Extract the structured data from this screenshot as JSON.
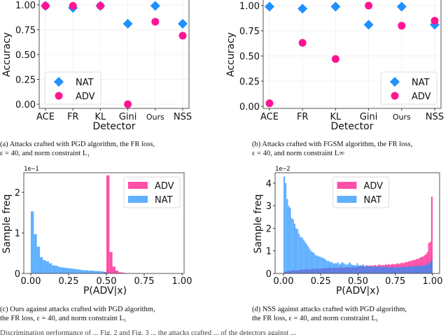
{
  "colors": {
    "nat": "#1e90ff",
    "adv": "#ff1493",
    "nat_hist": "#5fb0ff",
    "adv_hist": "#ff4fa7",
    "overlap_hist": "#5b7fe6"
  },
  "captions": {
    "a": [
      "(a) Attacks crafted with PGD algorithm, the FR loss,",
      "ε = 40, and norm constraint L₁"
    ],
    "b": [
      "(b) Attacks crafted with FGSM algorithm, the FR loss,",
      "ε = 40, and norm constraint L∞"
    ],
    "c": [
      "(c) Ours against attacks crafted with PGD algorithm,",
      "the FR loss, ε = 40, and norm constraint L₁"
    ],
    "d": [
      "(d) NSS against attacks crafted with PGD algorithm,",
      "the FR loss, ε = 40, and norm constraint L₁"
    ]
  },
  "footer_text": "Discrimination performance of ... Fig. 2 and Fig. 3 ... the attacks crafted ... of the detectors against ...",
  "chart_data": [
    {
      "id": "a",
      "type": "scatter",
      "title": "",
      "xlabel": "Detector",
      "ylabel": "Accuracy",
      "categories": [
        "ACE",
        "FR",
        "KL",
        "Gini",
        "Ours",
        "NSS"
      ],
      "yticks": [
        "0.00",
        "0.25",
        "0.50",
        "0.75",
        "1.00"
      ],
      "ylim": [
        0,
        1
      ],
      "grid": true,
      "legend": {
        "position": "lower-left",
        "entries": [
          "NAT",
          "ADV"
        ]
      },
      "series": [
        {
          "name": "NAT",
          "marker": "diamond",
          "values": [
            0.99,
            0.97,
            0.99,
            0.81,
            0.99,
            0.81
          ]
        },
        {
          "name": "ADV",
          "marker": "circle",
          "values": [
            0.99,
            0.99,
            0.99,
            0.0,
            0.83,
            0.69
          ]
        }
      ]
    },
    {
      "id": "b",
      "type": "scatter",
      "title": "",
      "xlabel": "Detector",
      "ylabel": "Accuracy",
      "categories": [
        "ACE",
        "FR",
        "KL",
        "Gini",
        "Ours",
        "NSS"
      ],
      "yticks": [
        "0.00",
        "0.25",
        "0.50",
        "0.75",
        "1.00"
      ],
      "ylim": [
        0,
        1
      ],
      "grid": true,
      "legend": {
        "position": "lower-right",
        "entries": [
          "NAT",
          "ADV"
        ]
      },
      "series": [
        {
          "name": "NAT",
          "marker": "diamond",
          "values": [
            0.99,
            0.97,
            0.99,
            0.81,
            0.99,
            0.81
          ]
        },
        {
          "name": "ADV",
          "marker": "circle",
          "values": [
            0.03,
            0.63,
            0.47,
            1.0,
            0.8,
            0.85
          ]
        }
      ]
    },
    {
      "id": "c",
      "type": "bar",
      "subtype": "histogram",
      "xlabel": "P(ADV|x)",
      "ylabel": "Sample freq",
      "y_offset_label": "1e−1",
      "xticks": [
        "0.00",
        "0.25",
        "0.50",
        "0.75",
        "1.00"
      ],
      "yticks": [
        "0",
        "1",
        "2"
      ],
      "xlim": [
        0,
        1
      ],
      "ylim": [
        0,
        2.45
      ],
      "legend": {
        "position": "top-right",
        "entries": [
          "ADV",
          "NAT"
        ]
      },
      "bin_width": 0.02,
      "series": [
        {
          "name": "NAT",
          "bin_start": 0.0,
          "values": [
            1.53,
            0.97,
            0.66,
            0.4,
            0.33,
            0.3,
            0.25,
            0.2,
            0.19,
            0.16,
            0.15,
            0.14,
            0.13,
            0.12,
            0.11,
            0.1,
            0.09,
            0.08,
            0.08,
            0.07,
            0.07,
            0.06,
            0.06,
            0.05,
            0.04
          ]
        },
        {
          "name": "ADV",
          "bin_start": 0.48,
          "values": [
            0.03,
            2.42,
            0.53,
            0.17,
            0.07,
            0.03,
            0.02,
            0.01
          ]
        }
      ]
    },
    {
      "id": "d",
      "type": "bar",
      "subtype": "histogram",
      "xlabel": "P(ADV|x)",
      "ylabel": "Sample freq",
      "y_offset_label": "1e−2",
      "xticks": [
        "0.00",
        "0.25",
        "0.50",
        "0.75",
        "1.00"
      ],
      "yticks": [
        "0",
        "1",
        "2",
        "3",
        "4"
      ],
      "xlim": [
        0,
        1
      ],
      "ylim": [
        0,
        4.4
      ],
      "legend": {
        "position": "top-center",
        "entries": [
          "ADV",
          "NAT"
        ]
      },
      "bin_width": 0.01,
      "series": [
        {
          "name": "NAT",
          "bin_start": 0.0,
          "values": [
            4.3,
            4.0,
            3.3,
            3.0,
            2.9,
            2.45,
            2.4,
            2.2,
            2.0,
            1.95,
            1.75,
            1.6,
            1.6,
            1.5,
            1.4,
            1.3,
            1.2,
            1.1,
            1.0,
            0.95,
            0.9,
            0.8,
            0.8,
            0.75,
            0.75,
            0.7,
            0.7,
            0.65,
            0.6,
            0.55,
            0.55,
            0.5,
            0.5,
            0.45,
            0.45,
            0.45,
            0.5,
            0.4,
            0.45,
            0.5,
            0.45,
            0.4,
            0.38,
            0.42,
            0.5,
            0.4,
            0.38,
            0.37,
            0.35,
            0.45,
            0.35,
            0.38,
            0.34,
            0.4,
            0.32,
            0.34,
            0.3,
            0.33,
            0.32,
            0.3,
            0.32,
            0.29,
            0.3,
            0.32,
            0.3,
            0.28,
            0.3,
            0.3,
            0.28,
            0.3,
            0.28,
            0.27,
            0.3,
            0.28,
            0.27,
            0.28,
            0.3,
            0.27,
            0.28,
            0.3,
            0.3,
            0.28,
            0.3,
            0.32,
            0.3,
            0.33,
            0.3,
            0.32,
            0.33,
            0.32,
            0.35,
            0.35,
            0.33,
            0.35,
            0.37,
            0.38,
            0.4,
            0.45,
            0.5,
            0.62
          ]
        },
        {
          "name": "ADV",
          "bin_start": 0.0,
          "values": [
            0.05,
            0.08,
            0.1,
            0.12,
            0.1,
            0.12,
            0.15,
            0.13,
            0.12,
            0.15,
            0.14,
            0.16,
            0.18,
            0.15,
            0.17,
            0.2,
            0.18,
            0.16,
            0.2,
            0.22,
            0.18,
            0.2,
            0.22,
            0.2,
            0.2,
            0.22,
            0.24,
            0.22,
            0.25,
            0.22,
            0.24,
            0.26,
            0.22,
            0.25,
            0.27,
            0.24,
            0.26,
            0.25,
            0.28,
            0.26,
            0.25,
            0.27,
            0.26,
            0.28,
            0.27,
            0.26,
            0.28,
            0.27,
            0.29,
            0.3,
            0.32,
            0.3,
            0.35,
            0.33,
            0.3,
            0.36,
            0.35,
            0.33,
            0.36,
            0.34,
            0.35,
            0.38,
            0.33,
            0.36,
            0.4,
            0.35,
            0.38,
            0.36,
            0.4,
            0.38,
            0.42,
            0.38,
            0.4,
            0.42,
            0.4,
            0.42,
            0.45,
            0.42,
            0.45,
            0.48,
            0.45,
            0.5,
            0.5,
            0.52,
            0.55,
            0.55,
            0.58,
            0.6,
            0.6,
            0.65,
            0.65,
            0.7,
            0.72,
            0.75,
            0.8,
            0.85,
            0.95,
            1.35,
            1.4,
            3.4
          ]
        }
      ]
    }
  ]
}
